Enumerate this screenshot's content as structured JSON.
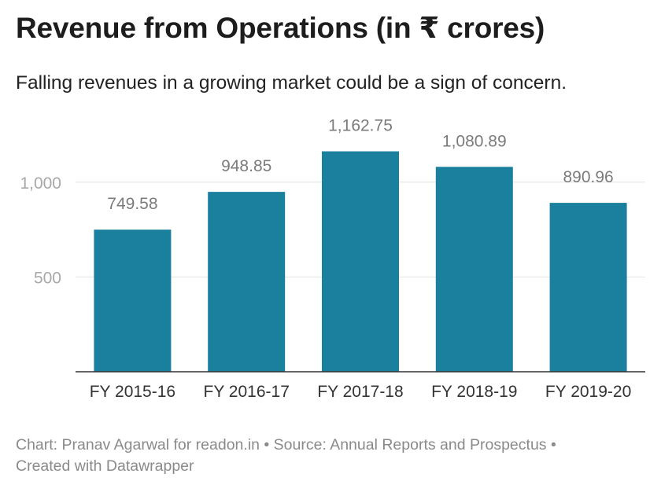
{
  "header": {
    "title": "Revenue from Operations (in ₹ crores)",
    "subtitle": "Falling revenues in a growing market could be a sign of concern."
  },
  "chart_data": {
    "type": "bar",
    "categories": [
      "FY 2015-16",
      "FY 2016-17",
      "FY 2017-18",
      "FY 2018-19",
      "FY 2019-20"
    ],
    "values": [
      749.58,
      948.85,
      1162.75,
      1080.89,
      890.96
    ],
    "value_labels": [
      "749.58",
      "948.85",
      "1,162.75",
      "1,080.89",
      "890.96"
    ],
    "yticks": [
      500,
      1000
    ],
    "ytick_labels": [
      "500",
      "1,000"
    ],
    "ylim": [
      0,
      1200
    ],
    "grid": true,
    "bar_color": "#1b7f9e",
    "title": "Revenue from Operations (in ₹ crores)",
    "xlabel": "",
    "ylabel": ""
  },
  "footer": {
    "line1": "Chart: Pranav Agarwal for readon.in • Source: Annual Reports and Prospectus •",
    "line2": "Created with Datawrapper"
  }
}
